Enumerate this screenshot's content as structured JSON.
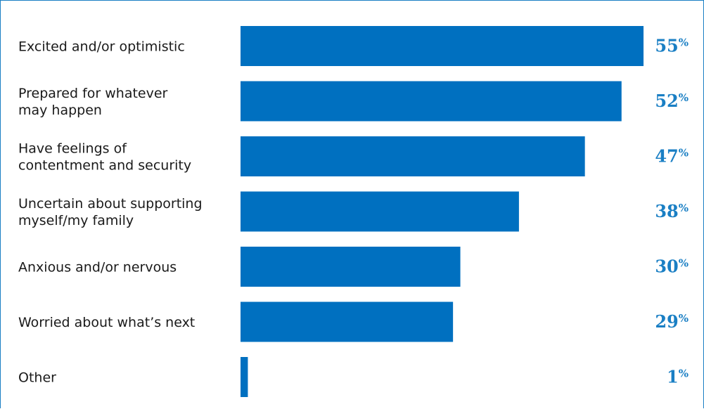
{
  "chart_data": {
    "type": "bar",
    "orientation": "horizontal",
    "categories": [
      [
        "Excited and/or optimistic"
      ],
      [
        "Prepared for whatever",
        "may happen"
      ],
      [
        "Have feelings of",
        "contentment and security"
      ],
      [
        "Uncertain about supporting",
        "myself/my family"
      ],
      [
        "Anxious and/or nervous"
      ],
      [
        "Worried about what’s next"
      ],
      [
        "Other"
      ]
    ],
    "values": [
      55,
      52,
      47,
      38,
      30,
      29,
      1
    ],
    "value_labels": [
      "55",
      "52",
      "47",
      "38",
      "30",
      "29",
      "1"
    ],
    "unit": "%",
    "xlim": [
      0,
      55
    ],
    "grid": false,
    "legend": "none"
  },
  "colors": {
    "bar": "#0070c0",
    "value_text": "#1a7fc4",
    "frame": "#1a7fc4"
  }
}
